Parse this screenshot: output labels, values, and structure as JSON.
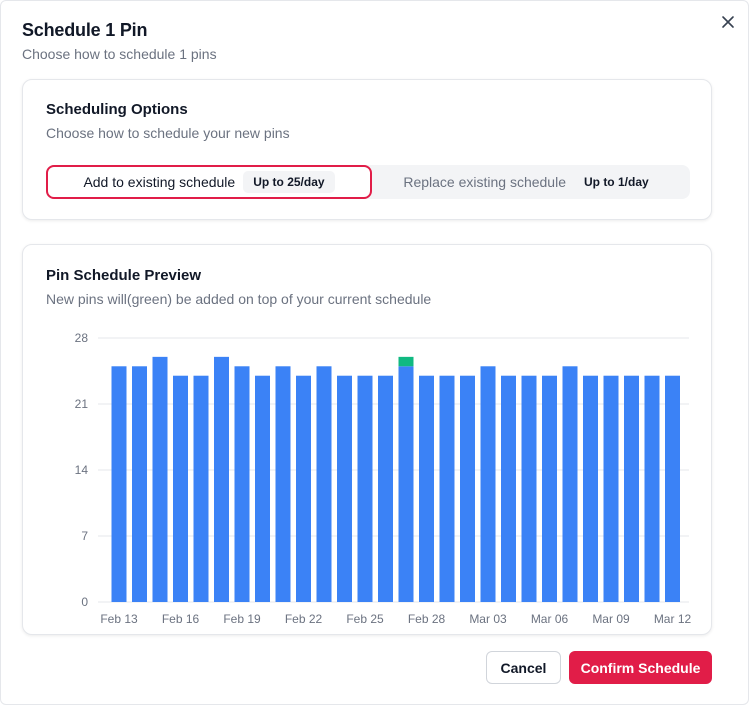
{
  "dialog": {
    "title": "Schedule 1 Pin",
    "subtitle": "Choose how to schedule 1 pins"
  },
  "options": {
    "title": "Scheduling Options",
    "subtitle": "Choose how to schedule your new pins",
    "items": [
      {
        "label": "Add to existing schedule",
        "badge": "Up to 25/day",
        "selected": true
      },
      {
        "label": "Replace existing schedule",
        "badge": "Up to 1/day",
        "selected": false
      }
    ]
  },
  "preview": {
    "title": "Pin Schedule Preview",
    "subtitle": "New pins will(green) be added on top of your current schedule"
  },
  "chart_data": {
    "type": "bar",
    "stacked": true,
    "colors": {
      "existing": "#3b82f6",
      "new": "#10b981",
      "grid": "#e5e7eb",
      "tick": "#6b7280"
    },
    "ylim": [
      0,
      28
    ],
    "yticks": [
      0,
      7,
      14,
      21,
      28
    ],
    "grid": true,
    "xtick_labels": [
      "Feb 13",
      "Feb 16",
      "Feb 19",
      "Feb 22",
      "Feb 25",
      "Feb 28",
      "Mar 03",
      "Mar 06",
      "Mar 09",
      "Mar 12"
    ],
    "series": [
      {
        "key": "existing",
        "values": [
          25,
          25,
          26,
          24,
          24,
          26,
          25,
          24,
          25,
          24,
          25,
          24,
          24,
          24,
          25,
          24,
          24,
          24,
          25,
          24,
          24,
          24,
          25,
          24,
          24,
          24,
          24,
          24
        ]
      },
      {
        "key": "new",
        "values": [
          0,
          0,
          0,
          0,
          0,
          0,
          0,
          0,
          0,
          0,
          0,
          0,
          0,
          0,
          1,
          0,
          0,
          0,
          0,
          0,
          0,
          0,
          0,
          0,
          0,
          0,
          0,
          0
        ]
      }
    ]
  },
  "footer": {
    "cancel": "Cancel",
    "confirm": "Confirm Schedule"
  }
}
